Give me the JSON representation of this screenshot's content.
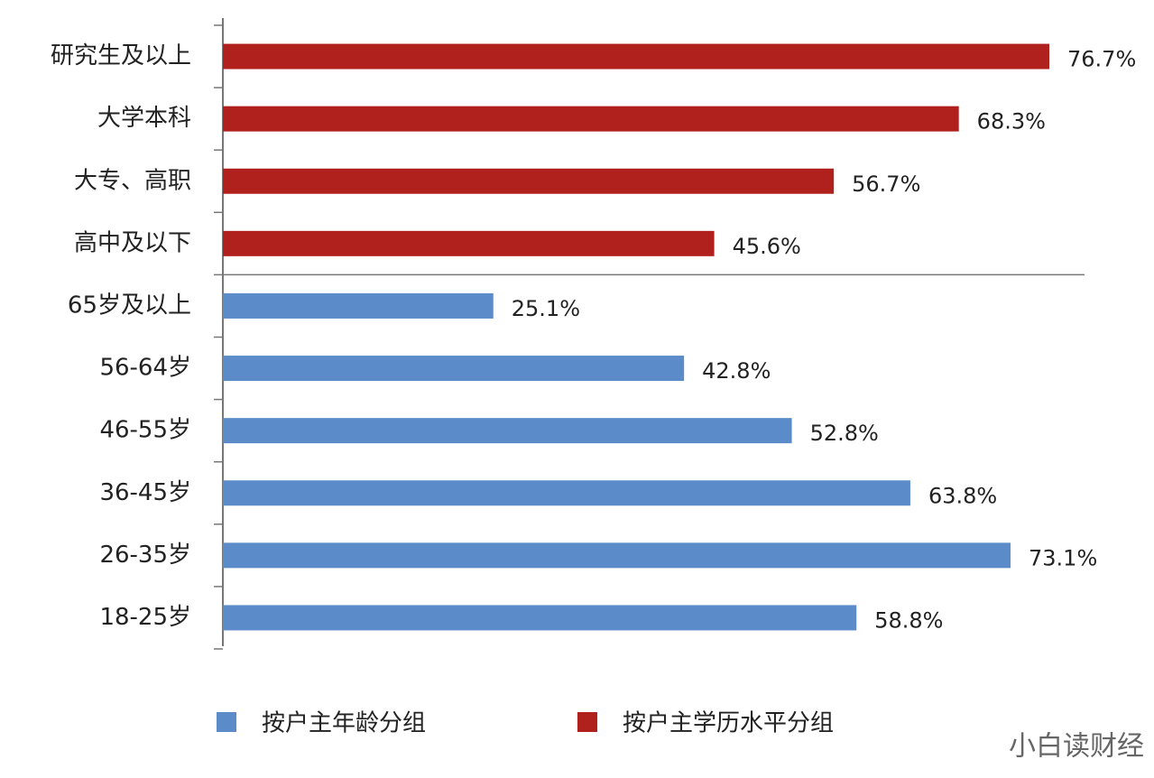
{
  "chart_data": {
    "type": "bar",
    "orientation": "horizontal",
    "categories": [
      "研究生及以上",
      "大学本科",
      "大专、高职",
      "高中及以下",
      "65岁及以上",
      "56-64岁",
      "46-55岁",
      "36-45岁",
      "26-35岁",
      "18-25岁"
    ],
    "series": [
      {
        "name": "按户主年龄分组",
        "color": "#5b8bc9",
        "values": [
          null,
          null,
          null,
          null,
          25.1,
          42.8,
          52.8,
          63.8,
          73.1,
          58.8
        ],
        "value_labels": [
          null,
          null,
          null,
          null,
          "25.1%",
          "42.8%",
          "52.8%",
          "63.8%",
          "73.1%",
          "58.8%"
        ]
      },
      {
        "name": "按户主学历水平分组",
        "color": "#b0201c",
        "values": [
          76.7,
          68.3,
          56.7,
          45.6,
          null,
          null,
          null,
          null,
          null,
          null
        ],
        "value_labels": [
          "76.7%",
          "68.3%",
          "56.7%",
          "45.6%",
          null,
          null,
          null,
          null,
          null,
          null
        ]
      }
    ]
  },
  "watermark": "小白读财经"
}
